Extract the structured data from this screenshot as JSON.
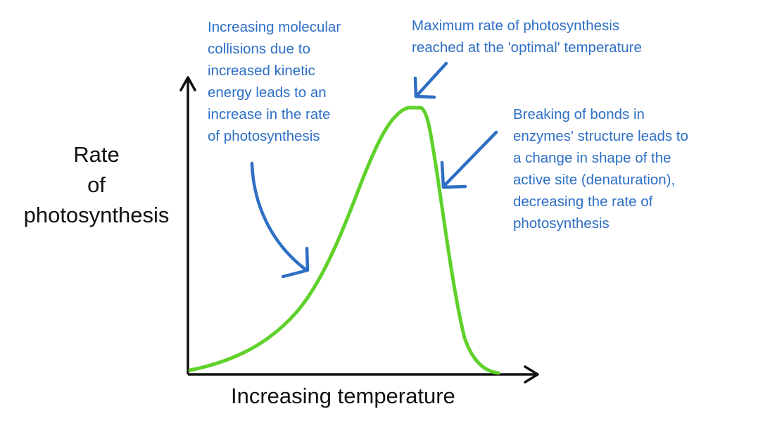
{
  "axes": {
    "y_label_lines": [
      "Rate",
      "of",
      "photosynthesis"
    ],
    "x_label": "Increasing temperature"
  },
  "annotations": {
    "rising": [
      "Increasing molecular",
      "collisions due to",
      "increased kinetic",
      "energy leads to an",
      "increase in the rate",
      "of photosynthesis"
    ],
    "peak": [
      "Maximum rate of photosynthesis",
      "reached at the 'optimal' temperature"
    ],
    "falling": [
      "Breaking of bonds in",
      "enzymes' structure leads to",
      "a change in shape of the",
      "active site (denaturation),",
      "decreasing the rate of",
      "photosynthesis"
    ]
  },
  "colors": {
    "curve": "#5fd12a",
    "annotation": "#2e6fc4",
    "axis": "#111111"
  },
  "icons": {
    "arrow_rising": "curved-arrow-icon",
    "arrow_peak": "arrow-down-left-icon",
    "arrow_falling": "arrow-down-left-icon"
  }
}
